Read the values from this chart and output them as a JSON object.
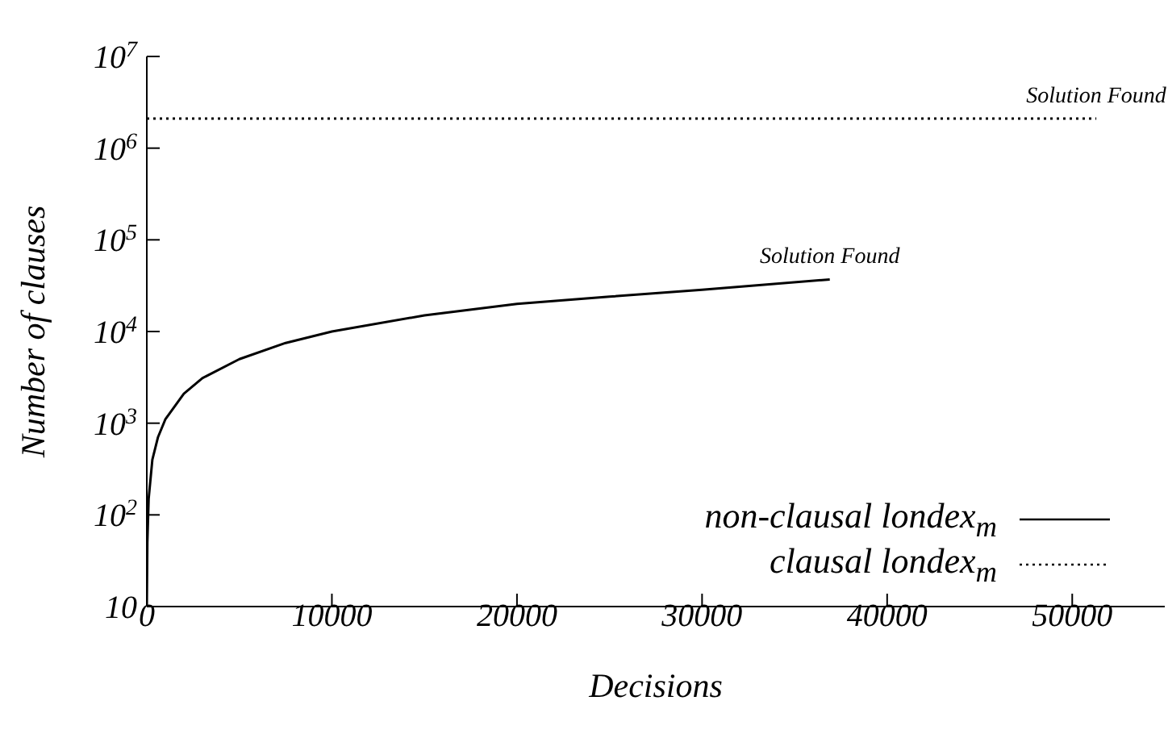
{
  "chart_data": {
    "type": "line",
    "xlabel": "Decisions",
    "ylabel": "Number of clauses",
    "xlim": [
      0,
      55000
    ],
    "xticks": [
      0,
      10000,
      20000,
      30000,
      40000,
      50000
    ],
    "ylim": [
      10,
      10000000
    ],
    "yticks": [
      10,
      {
        "value": 100,
        "label": "10$^{2}$"
      },
      {
        "value": 1000,
        "label": "10$^{3}$"
      },
      {
        "value": 10000,
        "label": "10$^{4}$"
      },
      {
        "value": 100000,
        "label": "10$^{5}$"
      },
      {
        "value": 1000000,
        "label": "10$^{6}$"
      },
      {
        "value": 10000000,
        "label": "10$^{7}$"
      }
    ],
    "log": "y",
    "grid": false,
    "legend": "bottom right",
    "marker": "none",
    "series": [
      {
        "name": "non-clausal londex$_{m}$",
        "color": "#000000",
        "line_style": "solid",
        "x": [
          0,
          30,
          100,
          300,
          600,
          1000,
          2000,
          3000,
          5000,
          7500,
          10000,
          15000,
          20000,
          25000,
          30000,
          36900
        ],
        "values": [
          10,
          50,
          150,
          400,
          700,
          1100,
          2100,
          3100,
          5000,
          7500,
          10000,
          15000,
          20000,
          24000,
          28500,
          37000
        ]
      },
      {
        "name": "clausal londex$_{m}$",
        "color": "#000000",
        "line_style": "dotted",
        "x": [
          0,
          51300
        ],
        "values": [
          2100000,
          2100000
        ]
      }
    ],
    "annotations": [
      {
        "text": "Solution Found",
        "x": 36900,
        "y": 37000
      },
      {
        "text": "Solution Found",
        "x": 51300,
        "y": 2100000
      }
    ]
  }
}
